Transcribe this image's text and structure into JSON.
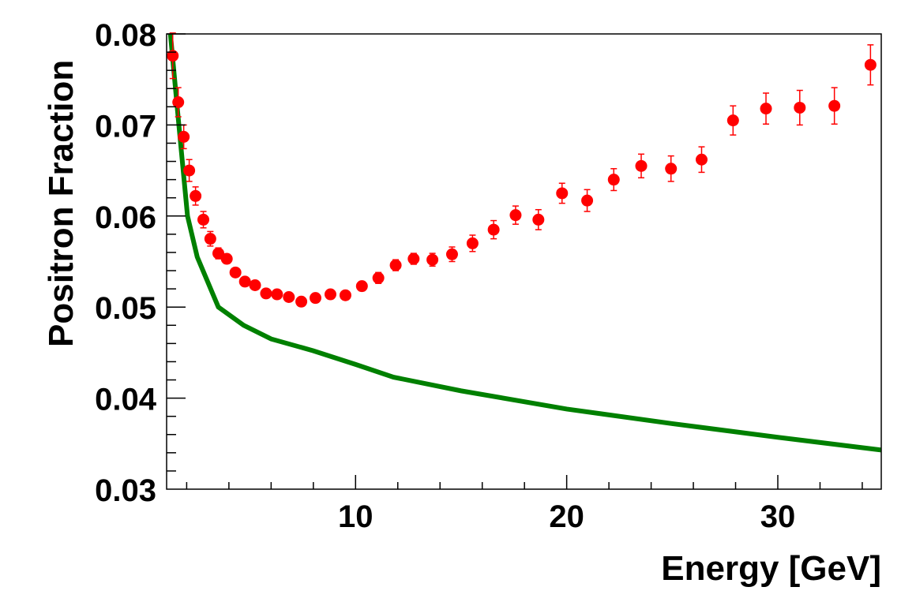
{
  "chart_data": {
    "type": "scatter",
    "title": "",
    "xlabel": "Energy [GeV]",
    "ylabel": "Positron Fraction",
    "xlim": [
      1.05,
      34.9
    ],
    "ylim": [
      0.03,
      0.08
    ],
    "x_ticks": [
      10,
      20,
      30
    ],
    "x_tick_labels": [
      "10",
      "20",
      "30"
    ],
    "y_ticks": [
      0.03,
      0.04,
      0.05,
      0.06,
      0.07,
      0.08
    ],
    "y_tick_labels": [
      "0.03",
      "0.04",
      "0.05",
      "0.06",
      "0.07",
      "0.08"
    ],
    "grid": false,
    "colors": {
      "points": "#ff0000",
      "curve": "#008000",
      "axes": "#000000"
    },
    "series": [
      {
        "type": "scatter-with-errors",
        "x": [
          1.34,
          1.6,
          1.86,
          2.12,
          2.42,
          2.79,
          3.12,
          3.5,
          3.9,
          4.31,
          4.76,
          5.24,
          5.76,
          6.28,
          6.84,
          7.43,
          8.1,
          8.81,
          9.52,
          10.3,
          11.08,
          11.9,
          12.75,
          13.64,
          14.57,
          15.54,
          16.54,
          17.58,
          18.66,
          19.78,
          20.97,
          22.23,
          23.53,
          24.94,
          26.39,
          27.88,
          29.44,
          31.04,
          32.68,
          34.39
        ],
        "y": [
          0.0776,
          0.0725,
          0.0687,
          0.065,
          0.0622,
          0.0596,
          0.0575,
          0.0559,
          0.0553,
          0.0538,
          0.0528,
          0.0524,
          0.0515,
          0.0514,
          0.0511,
          0.0506,
          0.051,
          0.0514,
          0.0513,
          0.0523,
          0.0532,
          0.0546,
          0.0553,
          0.0552,
          0.0558,
          0.057,
          0.0585,
          0.0601,
          0.0596,
          0.0625,
          0.0617,
          0.064,
          0.0655,
          0.0652,
          0.0662,
          0.0705,
          0.0718,
          0.0719,
          0.0721,
          0.0766
        ],
        "yerr": [
          0.0025,
          0.0016,
          0.0013,
          0.0012,
          0.001,
          0.0009,
          0.0008,
          0.0006,
          0.0005,
          0.0004,
          0.0004,
          0.0004,
          0.0004,
          0.0004,
          0.0004,
          0.0004,
          0.0004,
          0.0004,
          0.0004,
          0.0005,
          0.0006,
          0.0006,
          0.0006,
          0.0007,
          0.0008,
          0.0009,
          0.001,
          0.001,
          0.0011,
          0.0011,
          0.0012,
          0.0012,
          0.0013,
          0.0014,
          0.0014,
          0.0016,
          0.0017,
          0.0019,
          0.002,
          0.0022
        ]
      },
      {
        "type": "line",
        "x": [
          1.23,
          1.63,
          2.04,
          2.5,
          3.5,
          4.7,
          6,
          8,
          10,
          11.8,
          15,
          20,
          25,
          30,
          34.9
        ],
        "y": [
          0.08,
          0.07,
          0.06,
          0.0555,
          0.05,
          0.048,
          0.0465,
          0.0452,
          0.0437,
          0.0423,
          0.0408,
          0.0388,
          0.0372,
          0.0357,
          0.0343
        ]
      }
    ]
  }
}
